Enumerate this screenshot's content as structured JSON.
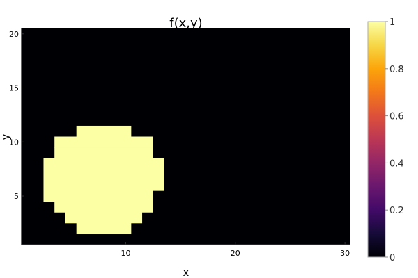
{
  "chart_data": {
    "type": "heatmap",
    "title": "f(x,y)",
    "xlabel": "x",
    "ylabel": "y",
    "xlim": [
      0.5,
      30.5
    ],
    "ylim": [
      0.5,
      20.5
    ],
    "x_ticks": [
      10,
      20,
      30
    ],
    "y_ticks": [
      5,
      10,
      15,
      20
    ],
    "grid": false,
    "colormap": "inferno",
    "color_range": [
      0,
      1
    ],
    "colorbar_ticks": [
      0,
      0.2,
      0.4,
      0.6,
      0.8,
      1
    ],
    "background_value": 0,
    "cells_value_1": [
      {
        "y": 2,
        "x_from": 6,
        "x_to": 10
      },
      {
        "y": 3,
        "x_from": 5,
        "x_to": 11
      },
      {
        "y": 4,
        "x_from": 4,
        "x_to": 12
      },
      {
        "y": 5,
        "x_from": 3,
        "x_to": 12
      },
      {
        "y": 6,
        "x_from": 3,
        "x_to": 13
      },
      {
        "y": 7,
        "x_from": 3,
        "x_to": 13
      },
      {
        "y": 8,
        "x_from": 3,
        "x_to": 13
      },
      {
        "y": 9,
        "x_from": 4,
        "x_to": 12
      },
      {
        "y": 10,
        "x_from": 4,
        "x_to": 12
      },
      {
        "y": 11,
        "x_from": 6,
        "x_to": 10
      }
    ]
  },
  "colors": {
    "low": "#000004",
    "high": "#fcffa4",
    "frame": "#333333"
  }
}
